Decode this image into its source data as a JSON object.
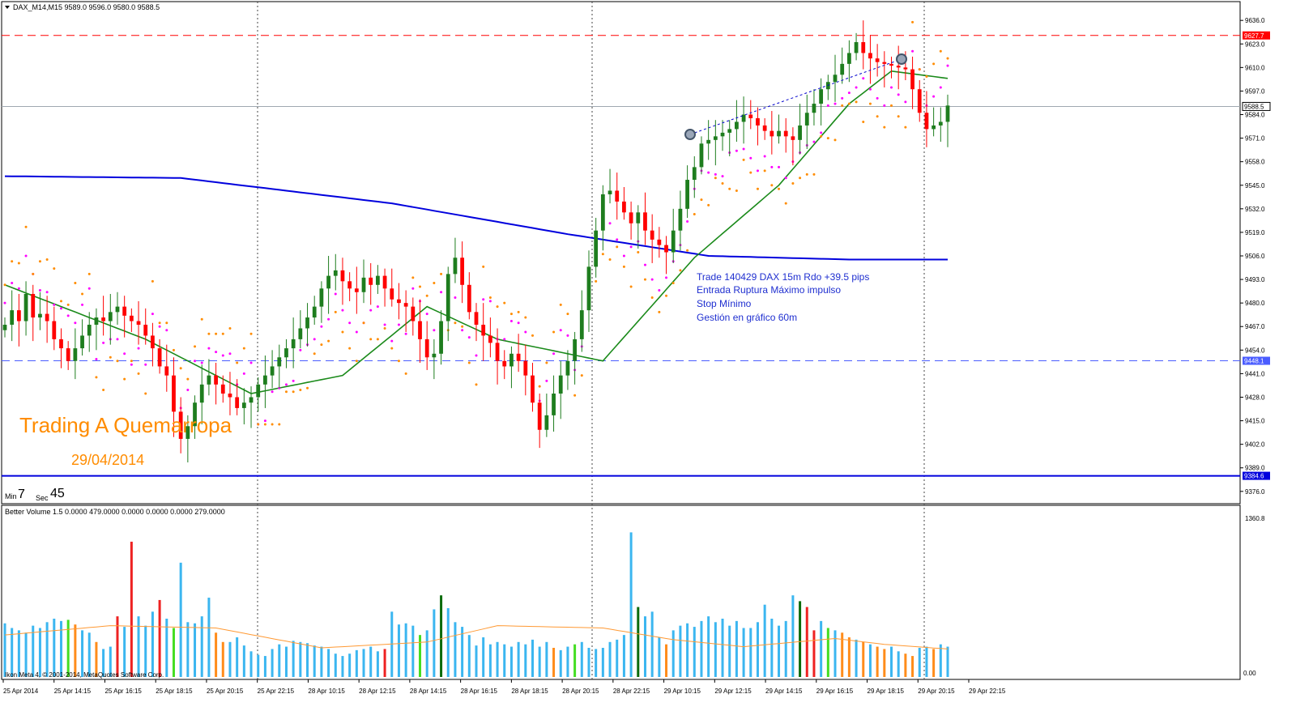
{
  "header": {
    "symbol_line": "DAX_M14,M15  9589.0 9596.0 9580.0 9588.5",
    "volume_line": "Better Volume 1.5 0.0000 479.0000 0.0000 0.0000 0.0000 279.0000"
  },
  "watermark": {
    "title": "Trading A Quemarropa",
    "date": "29/04/2014"
  },
  "timer": {
    "min_label": "Min",
    "min_value": "7",
    "sec_label": "Sec",
    "sec_value": "45"
  },
  "annotation": {
    "line1": "Trade 140429 DAX 15m Rdo +39.5 pips",
    "line2": "Entrada Ruptura Máximo impulso",
    "line3": "Stop Mínimo",
    "line4": "Gestión en gráfico 60m"
  },
  "copyright": "Ikon Meta 4, © 2001-2014, MetaQuotes Software Corp.",
  "colors": {
    "bull": "#1e7d1e",
    "bear": "#ff0000",
    "ma_blue": "#0000dd",
    "ma_green": "#1a8a1a",
    "sar_magenta": "#ff00ff",
    "sar_orange": "#ff8c00",
    "vol_blue": "#3bb6f0",
    "vol_green": "#44dd22",
    "vol_darkgreen": "#0b6b0b",
    "vol_red": "#ee2222",
    "vol_orange": "#ff8c1a",
    "vol_avg": "#ff9933"
  },
  "chart_data": {
    "type": "candlestick",
    "price_axis": {
      "ticks": [
        "9636.0",
        "9623.0",
        "9610.0",
        "9597.0",
        "9584.0",
        "9571.0",
        "9558.0",
        "9545.0",
        "9532.0",
        "9519.0",
        "9506.0",
        "9493.0",
        "9480.0",
        "9467.0",
        "9454.0",
        "9441.0",
        "9428.0",
        "9415.0",
        "9402.0",
        "9389.0",
        "9376.0"
      ],
      "range": [
        9371,
        9641
      ]
    },
    "price_labels": [
      {
        "value": 9627.7,
        "text": "9627.7",
        "style": "red-dashed"
      },
      {
        "value": 9588.5,
        "text": "9588.5",
        "style": "current"
      },
      {
        "value": 9448.1,
        "text": "9448.1",
        "style": "blue-dashed"
      },
      {
        "value": 9384.6,
        "text": "9384.6",
        "style": "blue-solid"
      }
    ],
    "time_axis": [
      "25 Apr 2014",
      "25 Apr 14:15",
      "25 Apr 16:15",
      "25 Apr 18:15",
      "25 Apr 20:15",
      "25 Apr 22:15",
      "28 Apr 10:15",
      "28 Apr 12:15",
      "28 Apr 14:15",
      "28 Apr 16:15",
      "28 Apr 18:15",
      "28 Apr 20:15",
      "28 Apr 22:15",
      "29 Apr 10:15",
      "29 Apr 12:15",
      "29 Apr 14:15",
      "29 Apr 16:15",
      "29 Apr 18:15",
      "29 Apr 20:15",
      "29 Apr 22:15"
    ],
    "closes": [
      9468,
      9476,
      9470,
      9485,
      9472,
      9474,
      9470,
      9460,
      9455,
      9448,
      9455,
      9462,
      9468,
      9472,
      9470,
      9475,
      9478,
      9473,
      9470,
      9468,
      9462,
      9455,
      9445,
      9440,
      9420,
      9405,
      9412,
      9425,
      9435,
      9440,
      9435,
      9430,
      9428,
      9422,
      9425,
      9428,
      9435,
      9440,
      9445,
      9450,
      9455,
      9460,
      9466,
      9472,
      9478,
      9488,
      9495,
      9498,
      9492,
      9488,
      9486,
      9494,
      9490,
      9495,
      9488,
      9482,
      9480,
      9478,
      9470,
      9460,
      9450,
      9452,
      9470,
      9496,
      9505,
      9490,
      9475,
      9468,
      9462,
      9458,
      9448,
      9445,
      9452,
      9448,
      9440,
      9425,
      9410,
      9418,
      9430,
      9440,
      9448,
      9460,
      9476,
      9500,
      9520,
      9540,
      9542,
      9536,
      9530,
      9524,
      9530,
      9520,
      9515,
      9512,
      9508,
      9520,
      9532,
      9548,
      9555,
      9568,
      9570,
      9572,
      9574,
      9576,
      9580,
      9584,
      9582,
      9578,
      9575,
      9572,
      9575,
      9572,
      9570,
      9578,
      9585,
      9590,
      9598,
      9602,
      9606,
      9612,
      9618,
      9624,
      9618,
      9615,
      9613,
      9612,
      9611,
      9610,
      9609,
      9598,
      9585,
      9576,
      9578,
      9580,
      9589
    ],
    "ema_blue_key_points": [
      [
        0,
        9550
      ],
      [
        25,
        9549
      ],
      [
        55,
        9535
      ],
      [
        80,
        9518
      ],
      [
        100,
        9506
      ],
      [
        120,
        9504
      ],
      [
        134,
        9504
      ]
    ],
    "ema_green_key_points": [
      [
        0,
        9490
      ],
      [
        20,
        9460
      ],
      [
        35,
        9430
      ],
      [
        48,
        9440
      ],
      [
        60,
        9478
      ],
      [
        70,
        9460
      ],
      [
        85,
        9448
      ],
      [
        98,
        9505
      ],
      [
        110,
        9545
      ],
      [
        120,
        9590
      ],
      [
        126,
        9608
      ],
      [
        134,
        9604
      ]
    ],
    "volume": {
      "axis_labels": [
        "1360.8",
        "0.00"
      ],
      "range": [
        0,
        1360.8
      ],
      "values": [
        460,
        420,
        400,
        380,
        440,
        420,
        470,
        500,
        480,
        490,
        450,
        400,
        380,
        300,
        240,
        260,
        520,
        430,
        1160,
        520,
        440,
        560,
        660,
        500,
        420,
        980,
        470,
        460,
        520,
        680,
        380,
        300,
        300,
        340,
        270,
        220,
        190,
        180,
        240,
        280,
        260,
        310,
        300,
        290,
        270,
        260,
        240,
        200,
        180,
        200,
        230,
        240,
        260,
        220,
        240,
        560,
        450,
        460,
        440,
        360,
        400,
        580,
        700,
        590,
        470,
        430,
        360,
        270,
        340,
        280,
        300,
        280,
        260,
        300,
        280,
        320,
        260,
        300,
        250,
        230,
        260,
        280,
        300,
        250,
        240,
        250,
        300,
        320,
        360,
        1240,
        600,
        520,
        560,
        340,
        280,
        400,
        440,
        460,
        430,
        480,
        520,
        470,
        500,
        440,
        480,
        420,
        420,
        470,
        620,
        500,
        440,
        480,
        700,
        650,
        600,
        400,
        480,
        420,
        400,
        380,
        340,
        320,
        300,
        280,
        260,
        240,
        260,
        220,
        200,
        180,
        250,
        260,
        240,
        280,
        260
      ],
      "bar_colors": [
        "b",
        "b",
        "b",
        "b",
        "b",
        "b",
        "b",
        "b",
        "b",
        "g",
        "o",
        "b",
        "b",
        "o",
        "b",
        "b",
        "r",
        "b",
        "r",
        "b",
        "b",
        "b",
        "r",
        "b",
        "g",
        "b",
        "b",
        "b",
        "b",
        "b",
        "o",
        "o",
        "b",
        "b",
        "b",
        "b",
        "b",
        "b",
        "b",
        "b",
        "b",
        "b",
        "b",
        "b",
        "b",
        "b",
        "b",
        "b",
        "b",
        "b",
        "b",
        "b",
        "b",
        "b",
        "r",
        "b",
        "b",
        "b",
        "b",
        "g",
        "b",
        "b",
        "d",
        "b",
        "b",
        "b",
        "b",
        "b",
        "b",
        "b",
        "b",
        "b",
        "b",
        "b",
        "b",
        "b",
        "b",
        "b",
        "o",
        "b",
        "b",
        "g",
        "b",
        "b",
        "b",
        "b",
        "b",
        "b",
        "b",
        "b",
        "d",
        "b",
        "b",
        "b",
        "o",
        "b",
        "b",
        "b",
        "b",
        "b",
        "b",
        "b",
        "b",
        "b",
        "b",
        "b",
        "b",
        "b",
        "b",
        "b",
        "b",
        "b",
        "b",
        "d",
        "r",
        "r",
        "b",
        "g",
        "b",
        "o",
        "o",
        "b",
        "o",
        "b",
        "o",
        "o",
        "b",
        "b",
        "o",
        "o",
        "b",
        "b",
        "o",
        "b",
        "b"
      ],
      "avg_key_points": [
        [
          0,
          360
        ],
        [
          15,
          440
        ],
        [
          30,
          420
        ],
        [
          45,
          250
        ],
        [
          60,
          300
        ],
        [
          70,
          440
        ],
        [
          85,
          420
        ],
        [
          95,
          320
        ],
        [
          105,
          260
        ],
        [
          118,
          330
        ],
        [
          125,
          280
        ],
        [
          134,
          240
        ]
      ]
    }
  }
}
